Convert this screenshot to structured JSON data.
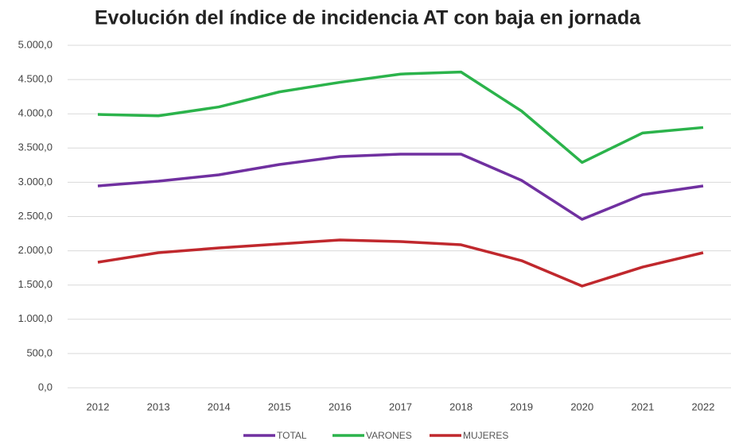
{
  "chart_data": {
    "type": "line",
    "title": "Evolución del índice de incidencia AT con baja en jornada",
    "categories": [
      "2012",
      "2013",
      "2014",
      "2015",
      "2016",
      "2017",
      "2018",
      "2019",
      "2020",
      "2021",
      "2022"
    ],
    "series": [
      {
        "name": "TOTAL",
        "color": "#7030a0",
        "values": [
          2947,
          3016,
          3109,
          3260,
          3376,
          3411,
          3411,
          3028,
          2459,
          2819,
          2947
        ]
      },
      {
        "name": "VARONES",
        "color": "#2bb34b",
        "values": [
          3990,
          3970,
          4100,
          4320,
          4460,
          4580,
          4610,
          4040,
          3290,
          3720,
          3800
        ]
      },
      {
        "name": "MUJERES",
        "color": "#c0282d",
        "values": [
          1833,
          1972,
          2042,
          2100,
          2158,
          2135,
          2088,
          1856,
          1485,
          1763,
          1972
        ]
      }
    ],
    "ylim": [
      0,
      5000
    ],
    "yticks": [
      {
        "value": 0,
        "label": "0,0"
      },
      {
        "value": 500,
        "label": "500,0"
      },
      {
        "value": 1000,
        "label": "1.000,0"
      },
      {
        "value": 1500,
        "label": "1.500,0"
      },
      {
        "value": 2000,
        "label": "2.000,0"
      },
      {
        "value": 2500,
        "label": "2.500,0"
      },
      {
        "value": 3000,
        "label": "3.000,0"
      },
      {
        "value": 3500,
        "label": "3.500,0"
      },
      {
        "value": 4000,
        "label": "4.000,0"
      },
      {
        "value": 4500,
        "label": "4.500,0"
      },
      {
        "value": 5000,
        "label": "5.000,0"
      }
    ],
    "grid": true,
    "legend": "bottom"
  }
}
